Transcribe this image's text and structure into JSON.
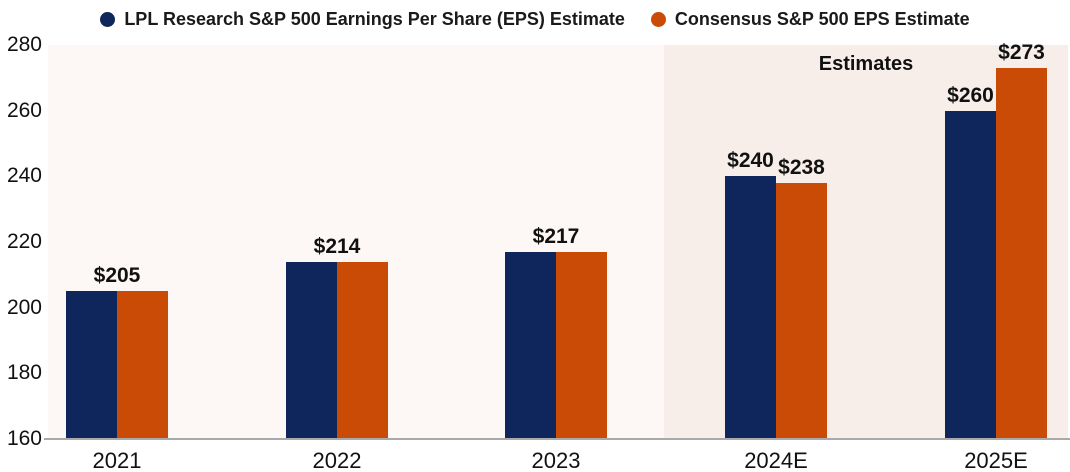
{
  "chart_data": {
    "type": "bar",
    "categories": [
      "2021",
      "2022",
      "2023",
      "2024E",
      "2025E"
    ],
    "series": [
      {
        "name": "LPL Research S&P 500 Earnings Per Share (EPS) Estimate",
        "color": "#0F265C",
        "values": [
          205,
          214,
          217,
          240,
          260
        ]
      },
      {
        "name": "Consensus S&P 500 EPS Estimate",
        "color": "#C94B06",
        "values": [
          205,
          214,
          217,
          238,
          273
        ]
      }
    ],
    "value_labels": [
      {
        "text": "$205",
        "group": 0,
        "anchor": "group"
      },
      {
        "text": "$214",
        "group": 1,
        "anchor": "group"
      },
      {
        "text": "$217",
        "group": 2,
        "anchor": "group"
      },
      {
        "text": "$240",
        "group": 3,
        "anchor": "lpl"
      },
      {
        "text": "$238",
        "group": 3,
        "anchor": "consensus"
      },
      {
        "text": "$260",
        "group": 4,
        "anchor": "lpl"
      },
      {
        "text": "$273",
        "group": 4,
        "anchor": "consensus"
      }
    ],
    "y_axis": {
      "min": 160,
      "max": 280,
      "step": 20,
      "tick_labels": [
        "280",
        "260",
        "240",
        "220",
        "200",
        "180",
        "160"
      ]
    },
    "x_axis": {
      "tick_labels": [
        "2021",
        "2022",
        "2023",
        "2024E",
        "2025E"
      ]
    },
    "annotations": {
      "estimates_label": "Estimates",
      "estimates_region_start_category": "2024E"
    },
    "legend_position": "top",
    "grid": false,
    "ylim": [
      160,
      280
    ],
    "colors": {
      "lpl_navy": "#0F265C",
      "consensus_orange": "#C94B06",
      "plot_background": "#FDF8F6",
      "estimates_background": "#F8EEE9",
      "axis_line": "#A9A9A9",
      "text": "#111111"
    }
  }
}
